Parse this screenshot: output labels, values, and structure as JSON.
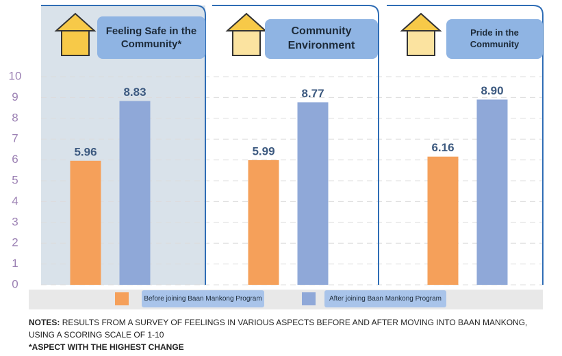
{
  "chart_data": {
    "type": "bar",
    "categories": [
      "Feeling Safe in the Community*",
      "Community Environment",
      "Pride in the Community"
    ],
    "series": [
      {
        "name": "Before joining Baan Mankong Program",
        "color": "#f5a05a",
        "values": [
          5.96,
          5.99,
          6.16
        ],
        "value_labels": [
          "5.96",
          "5.99",
          "6.16"
        ]
      },
      {
        "name": "After joining Baan Mankong Program",
        "color": "#8fa8d8",
        "values": [
          8.83,
          8.77,
          8.9
        ],
        "value_labels": [
          "8.83",
          "8.77",
          "8.90"
        ]
      }
    ],
    "ylim": [
      0,
      10
    ],
    "yticks": [
      0,
      1,
      2,
      3,
      4,
      5,
      6,
      7,
      8,
      9,
      10
    ],
    "grid": true,
    "notes_label": "NOTES:",
    "notes": "RESULTS FROM A SURVEY OF FEELINGS IN VARIOUS ASPECTS BEFORE AND AFTER MOVING INTO BAAN MANKONG, USING A SCORING SCALE OF 1-10",
    "footnote": "*ASPECT WITH THE HIGHEST CHANGE"
  }
}
